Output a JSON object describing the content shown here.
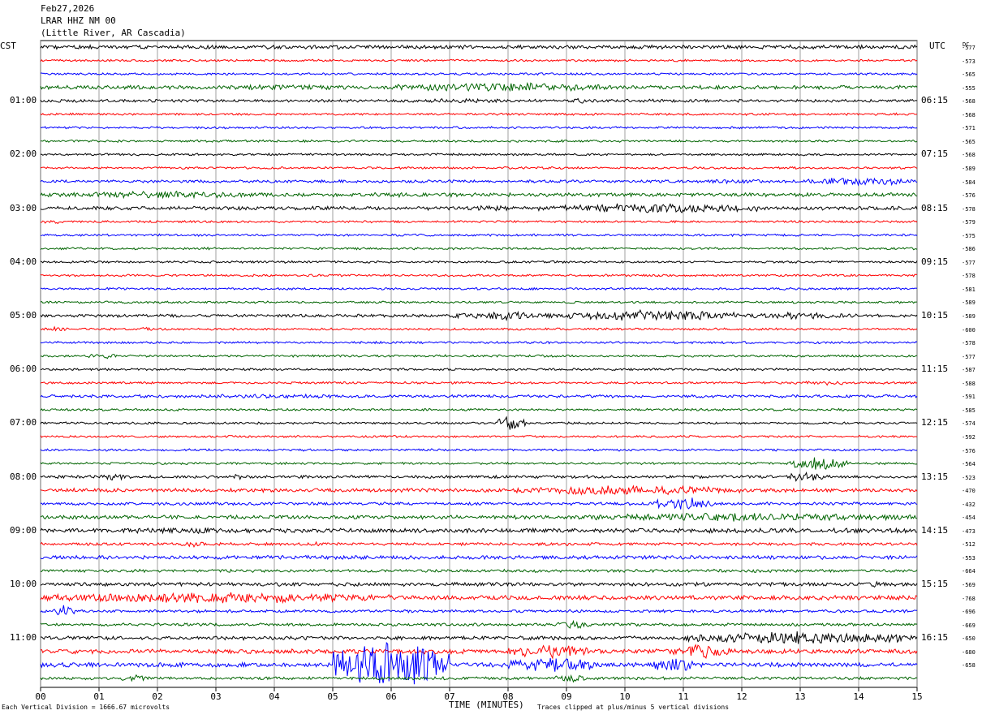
{
  "header": {
    "date": "Feb27,2026",
    "station": "LRAR HHZ NM 00",
    "location": "(Little River, AR Cascadia)"
  },
  "left_zone": "CST",
  "right_zone": "UTC",
  "dc_label": "DC",
  "footer": {
    "scale_note": "Each Vertical Division = 1666.67 microvolts",
    "xlabel": "TIME (MINUTES)",
    "clip_note": "Traces clipped at plus/minus 5 vertical divisions"
  },
  "colors": [
    "#000000",
    "#ff0000",
    "#0000ff",
    "#006400"
  ],
  "chart_data": {
    "type": "line",
    "title": "LRAR HHZ NM 00",
    "xlabel": "TIME (MINUTES)",
    "xlim": [
      0,
      15
    ],
    "x_ticks": [
      "00",
      "01",
      "02",
      "03",
      "04",
      "05",
      "06",
      "07",
      "08",
      "09",
      "10",
      "11",
      "12",
      "13",
      "14",
      "15"
    ],
    "traces_per_hour": 4,
    "minutes_per_trace": 15,
    "left_hour_labels": [
      {
        "row": 4,
        "text": "01:00"
      },
      {
        "row": 8,
        "text": "02:00"
      },
      {
        "row": 12,
        "text": "03:00"
      },
      {
        "row": 16,
        "text": "04:00"
      },
      {
        "row": 20,
        "text": "05:00"
      },
      {
        "row": 24,
        "text": "06:00"
      },
      {
        "row": 28,
        "text": "07:00"
      },
      {
        "row": 32,
        "text": "08:00"
      },
      {
        "row": 36,
        "text": "09:00"
      },
      {
        "row": 40,
        "text": "10:00"
      },
      {
        "row": 44,
        "text": "11:00"
      }
    ],
    "right_hour_labels": [
      {
        "row": 4,
        "text": "06:15"
      },
      {
        "row": 8,
        "text": "07:15"
      },
      {
        "row": 12,
        "text": "08:15"
      },
      {
        "row": 16,
        "text": "09:15"
      },
      {
        "row": 20,
        "text": "10:15"
      },
      {
        "row": 24,
        "text": "11:15"
      },
      {
        "row": 28,
        "text": "12:15"
      },
      {
        "row": 32,
        "text": "13:15"
      },
      {
        "row": 36,
        "text": "14:15"
      },
      {
        "row": 40,
        "text": "15:15"
      },
      {
        "row": 44,
        "text": "16:15"
      }
    ],
    "dc_offsets": [
      "-577",
      "-573",
      "-565",
      "-555",
      "-568",
      "-568",
      "-571",
      "-565",
      "-568",
      "-589",
      "-584",
      "-576",
      "-578",
      "-579",
      "-575",
      "-586",
      "-577",
      "-578",
      "-581",
      "-589",
      "-589",
      "-600",
      "-578",
      "-577",
      "-587",
      "-588",
      "-591",
      "-585",
      "-574",
      "-592",
      "-576",
      "-564",
      "-523",
      "-470",
      "-432",
      "-454",
      "-473",
      "-512",
      "-553",
      "-664",
      "-569",
      "-768",
      "-696",
      "-669",
      "-650",
      "-680",
      "-658"
    ],
    "traces": [
      {
        "row": 0,
        "base": 2.5,
        "events": [
          [
            0,
            2,
            2
          ]
        ]
      },
      {
        "row": 1,
        "base": 1.5,
        "events": []
      },
      {
        "row": 2,
        "base": 1.5,
        "events": [
          [
            13.8,
            14.3,
            2
          ]
        ]
      },
      {
        "row": 3,
        "base": 2.5,
        "events": [
          [
            2.2,
            5.9,
            4
          ],
          [
            5.9,
            9.8,
            7
          ],
          [
            9.8,
            11.5,
            3
          ]
        ]
      },
      {
        "row": 4,
        "base": 2,
        "events": [
          [
            6,
            8.5,
            3
          ],
          [
            9,
            9.5,
            4
          ]
        ]
      },
      {
        "row": 5,
        "base": 1.5,
        "events": []
      },
      {
        "row": 6,
        "base": 1.5,
        "events": []
      },
      {
        "row": 7,
        "base": 1.5,
        "events": []
      },
      {
        "row": 8,
        "base": 1.5,
        "events": []
      },
      {
        "row": 9,
        "base": 1.5,
        "events": []
      },
      {
        "row": 10,
        "base": 2,
        "events": [
          [
            11,
            13,
            3
          ],
          [
            13,
            15,
            6
          ]
        ]
      },
      {
        "row": 11,
        "base": 2.5,
        "events": [
          [
            0,
            4,
            5
          ],
          [
            4,
            8,
            3
          ]
        ]
      },
      {
        "row": 12,
        "base": 2.5,
        "events": [
          [
            7,
            8.5,
            4
          ],
          [
            8.5,
            12.5,
            7
          ]
        ]
      },
      {
        "row": 13,
        "base": 1.5,
        "events": [
          [
            0,
            0.5,
            3
          ]
        ]
      },
      {
        "row": 14,
        "base": 1.5,
        "events": []
      },
      {
        "row": 15,
        "base": 1.5,
        "events": []
      },
      {
        "row": 16,
        "base": 1.5,
        "events": []
      },
      {
        "row": 17,
        "base": 1.5,
        "events": []
      },
      {
        "row": 18,
        "base": 1.5,
        "events": []
      },
      {
        "row": 19,
        "base": 1.5,
        "events": []
      },
      {
        "row": 20,
        "base": 2,
        "events": [
          [
            7,
            9,
            6
          ],
          [
            9,
            12,
            8
          ],
          [
            12,
            14,
            5
          ]
        ]
      },
      {
        "row": 21,
        "base": 1.5,
        "events": [
          [
            0,
            0.5,
            3
          ],
          [
            1.6,
            2,
            3
          ]
        ]
      },
      {
        "row": 22,
        "base": 1.5,
        "events": []
      },
      {
        "row": 23,
        "base": 1.5,
        "events": [
          [
            0.8,
            1.3,
            4
          ]
        ]
      },
      {
        "row": 24,
        "base": 1.5,
        "events": []
      },
      {
        "row": 25,
        "base": 1.5,
        "events": [
          [
            13,
            14,
            3
          ]
        ]
      },
      {
        "row": 26,
        "base": 2,
        "events": [
          [
            1.5,
            7,
            3
          ]
        ]
      },
      {
        "row": 27,
        "base": 1.5,
        "events": []
      },
      {
        "row": 28,
        "base": 1.5,
        "events": [
          [
            7.8,
            8.3,
            10
          ]
        ]
      },
      {
        "row": 29,
        "base": 1.5,
        "events": []
      },
      {
        "row": 30,
        "base": 1.5,
        "events": []
      },
      {
        "row": 31,
        "base": 1.5,
        "events": [
          [
            12.8,
            13.8,
            10
          ]
        ]
      },
      {
        "row": 32,
        "base": 2,
        "events": [
          [
            1,
            1.5,
            5
          ],
          [
            3.2,
            3.6,
            4
          ],
          [
            12.8,
            13.5,
            8
          ]
        ]
      },
      {
        "row": 33,
        "base": 2.5,
        "events": [
          [
            5.5,
            7.5,
            3
          ],
          [
            8,
            12,
            7
          ]
        ]
      },
      {
        "row": 34,
        "base": 2,
        "events": [
          [
            10.5,
            11.5,
            10
          ]
        ]
      },
      {
        "row": 35,
        "base": 2.5,
        "events": [
          [
            9,
            15,
            6
          ]
        ]
      },
      {
        "row": 36,
        "base": 3,
        "events": [
          [
            0,
            5,
            4
          ]
        ]
      },
      {
        "row": 37,
        "base": 2,
        "events": [
          [
            2.4,
            2.8,
            4
          ],
          [
            4.3,
            5,
            3
          ]
        ]
      },
      {
        "row": 38,
        "base": 2.5,
        "events": [
          [
            4,
            6,
            3
          ]
        ]
      },
      {
        "row": 39,
        "base": 2,
        "events": []
      },
      {
        "row": 40,
        "base": 2.5,
        "events": [
          [
            14,
            14.6,
            4
          ]
        ]
      },
      {
        "row": 41,
        "base": 3,
        "events": [
          [
            0,
            6,
            8
          ]
        ]
      },
      {
        "row": 42,
        "base": 2,
        "events": [
          [
            0.2,
            0.6,
            8
          ]
        ]
      },
      {
        "row": 43,
        "base": 2,
        "events": [
          [
            8.8,
            9.4,
            7
          ]
        ]
      },
      {
        "row": 44,
        "base": 2.5,
        "events": [
          [
            11,
            15,
            9
          ]
        ]
      },
      {
        "row": 45,
        "base": 3,
        "events": [
          [
            8,
            9.5,
            10
          ],
          [
            10.8,
            11.8,
            10
          ]
        ]
      },
      {
        "row": 46,
        "base": 3,
        "events": [
          [
            5,
            7,
            35
          ],
          [
            8,
            9.5,
            12
          ],
          [
            10.5,
            11.2,
            12
          ]
        ]
      },
      {
        "row": 47,
        "base": 2,
        "events": [
          [
            1.4,
            1.8,
            6
          ],
          [
            8.8,
            9.4,
            6
          ]
        ]
      }
    ]
  }
}
